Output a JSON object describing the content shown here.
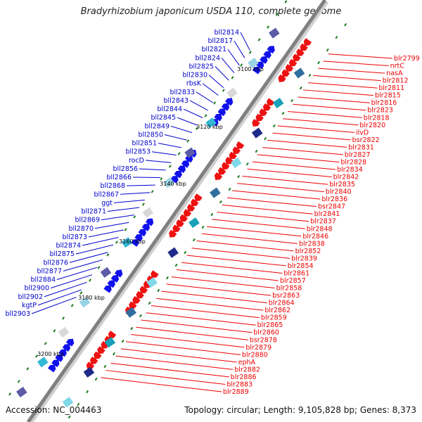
{
  "title": "Bradyrhizobium japonicum USDA 110, complete genome",
  "accession_text": "Accession: NC_004463",
  "summary_text": "Topology: circular; Length: 9,105,828 bp; Genes: 8,373",
  "colors": {
    "backbone": "#808080",
    "forward_gene": "#ee1111",
    "reverse_gene": "#1111ee",
    "forward_label": "#ee0000",
    "reverse_label": "#0000cc",
    "tick": "#1a7a1a"
  },
  "ticks": [
    "3100 kbp",
    "3120 kbp",
    "3140 kbp",
    "3160 kbp",
    "3180 kbp",
    "3200 kbp"
  ],
  "reverse_labels": [
    "bll2814",
    "bll2817",
    "bll2821",
    "bll2824",
    "bll2825",
    "bll2830",
    "rbsK",
    "bll2833",
    "bll2843",
    "bll2844",
    "bll2845",
    "bll2849",
    "bll2850",
    "bll2851",
    "bll2853",
    "rocD",
    "bll2856",
    "bll2866",
    "bll2868",
    "bll2867",
    "ggt",
    "bll2871",
    "bll2869",
    "bll2870",
    "bll2873",
    "bll2874",
    "bll2875",
    "bll2876",
    "bll2877",
    "bll2884",
    "bll2900",
    "bll2902",
    "kgtP",
    "bll2903"
  ],
  "forward_labels": [
    "blr2799",
    "nrtC",
    "nasA",
    "blr2812",
    "blr2811",
    "blr2815",
    "blr2816",
    "blr2823",
    "blr2818",
    "blr2820",
    "ilvD",
    "bsr2822",
    "blr2831",
    "blr2827",
    "blr2828",
    "blr2834",
    "blr2842",
    "blr2835",
    "blr2840",
    "blr2836",
    "bsr2847",
    "blr2841",
    "blr2837",
    "blr2848",
    "blr2846",
    "blr2838",
    "blr2852",
    "blr2839",
    "blr2854",
    "blr2861",
    "blr2857",
    "blr2858",
    "bsr2863",
    "blr2864",
    "blr2862",
    "blr2859",
    "blr2865",
    "blr2860",
    "bsr2878",
    "blr2879",
    "blr2880",
    "ephA",
    "blr2882",
    "blr2886",
    "blr2883",
    "blr2889"
  ]
}
